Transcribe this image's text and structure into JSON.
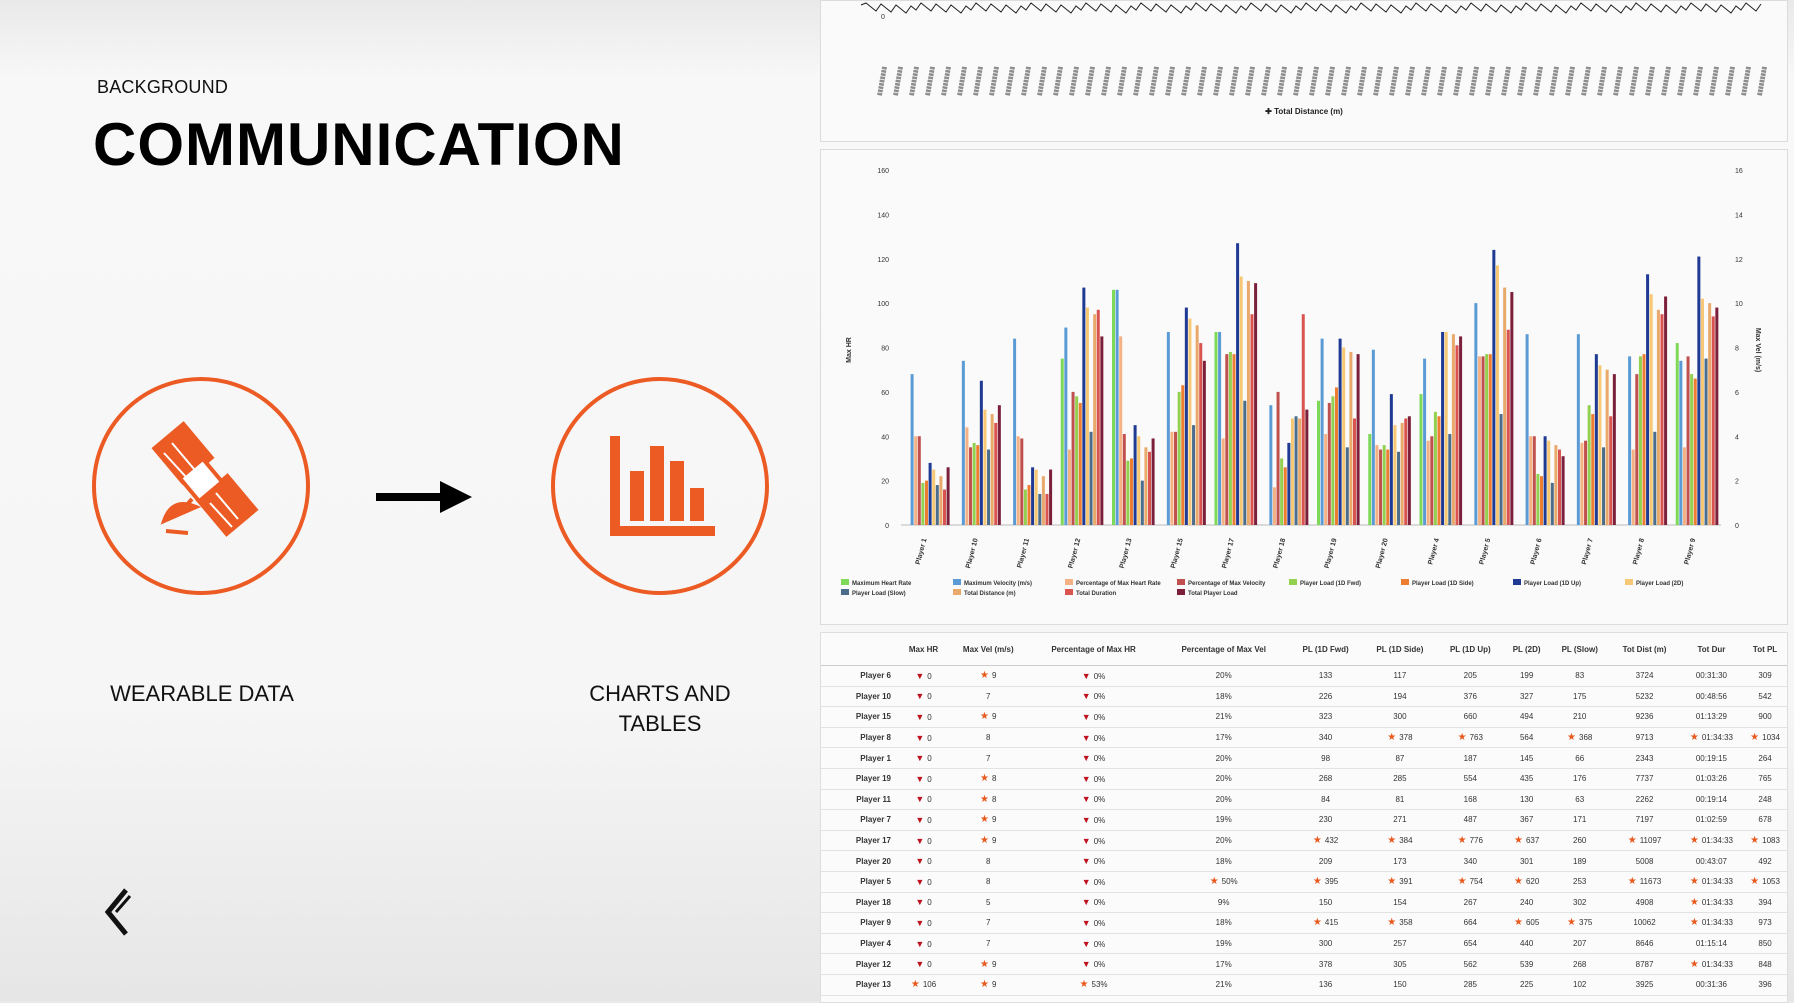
{
  "slide": {
    "kicker": "BACKGROUND",
    "title": "COMMUNICATION",
    "left_icon": "satellite-icon",
    "left_label": "WEARABLE DATA",
    "arrow_icon": "arrow-right-icon",
    "right_icon": "bar-chart-icon",
    "right_label_line1": "CHARTS AND",
    "right_label_line2": "TABLES",
    "logo_icon": "brand-logo-icon",
    "accent_color": "#ec5b24"
  },
  "top_chart": {
    "legend": "Total Distance (m)",
    "y_tick_visible": "0"
  },
  "chart_data": {
    "type": "bar",
    "ylabel": "Max HR",
    "y2label": "Max Vel (m/s)",
    "ylim": [
      0,
      160
    ],
    "y2lim": [
      0,
      16
    ],
    "y_ticks": [
      "0",
      "20",
      "40",
      "60",
      "80",
      "100",
      "120",
      "140",
      "160"
    ],
    "y2_ticks": [
      "0",
      "2",
      "4",
      "6",
      "8",
      "10",
      "12",
      "14",
      "16"
    ],
    "categories": [
      "Player 1",
      "Player 10",
      "Player 11",
      "Player 12",
      "Player 13",
      "Player 15",
      "Player 17",
      "Player 18",
      "Player 19",
      "Player 20",
      "Player 4",
      "Player 5",
      "Player 6",
      "Player 7",
      "Player 8",
      "Player 9"
    ],
    "legend": [
      "Maximum Heart Rate",
      "Maximum Velocity (m/s)",
      "Percentage of Max Heart Rate",
      "Percentage of Max Velocity",
      "Player Load (1D Fwd)",
      "Player Load (1D Side)",
      "Player Load (1D Up)",
      "Player Load (2D)",
      "Player Load (Slow)",
      "Total Distance (m)",
      "Total Duration",
      "Total Player Load"
    ],
    "colors": [
      "#7ed957",
      "#5b9bd5",
      "#f4b183",
      "#c0504d",
      "#92d050",
      "#ed7d31",
      "#1f3a93",
      "#f7c873",
      "#4b6c8b",
      "#e9a96b",
      "#d9534f",
      "#7b1f3a"
    ],
    "series": [
      {
        "name": "Maximum Heart Rate",
        "values": [
          0,
          0,
          0,
          75,
          106,
          0,
          87,
          0,
          56,
          41,
          59,
          0,
          0,
          0,
          0,
          82
        ]
      },
      {
        "name": "Maximum Velocity (m/s)",
        "values": [
          68,
          74,
          84,
          89,
          106,
          87,
          87,
          54,
          84,
          79,
          75,
          100,
          86,
          86,
          76,
          74
        ]
      },
      {
        "name": "Percentage of Max Heart Rate",
        "values": [
          40,
          44,
          40,
          34,
          85,
          42,
          39,
          17,
          41,
          36,
          38,
          76,
          40,
          37,
          34,
          35
        ]
      },
      {
        "name": "Percentage of Max Velocity",
        "values": [
          40,
          35,
          39,
          60,
          41,
          42,
          77,
          60,
          55,
          34,
          40,
          76,
          40,
          38,
          68,
          76
        ]
      },
      {
        "name": "Player Load (1D Fwd)",
        "values": [
          19,
          37,
          16,
          58,
          29,
          60,
          78,
          30,
          58,
          36,
          51,
          77,
          23,
          54,
          76,
          68
        ]
      },
      {
        "name": "Player Load (1D Side)",
        "values": [
          20,
          36,
          18,
          55,
          30,
          63,
          77,
          26,
          62,
          34,
          49,
          77,
          22,
          50,
          77,
          66
        ]
      },
      {
        "name": "Player Load (1D Up)",
        "values": [
          28,
          65,
          26,
          107,
          45,
          98,
          127,
          37,
          84,
          59,
          87,
          124,
          40,
          77,
          113,
          121
        ]
      },
      {
        "name": "Player Load (2D)",
        "values": [
          25,
          52,
          25,
          98,
          40,
          93,
          112,
          48,
          80,
          45,
          87,
          117,
          38,
          72,
          104,
          102
        ]
      },
      {
        "name": "Player Load (Slow)",
        "values": [
          18,
          34,
          14,
          42,
          20,
          45,
          56,
          49,
          35,
          33,
          41,
          50,
          19,
          35,
          42,
          75
        ]
      },
      {
        "name": "Total Distance (m)",
        "values": [
          22,
          50,
          22,
          95,
          35,
          90,
          110,
          48,
          78,
          46,
          86,
          107,
          36,
          70,
          97,
          100
        ]
      },
      {
        "name": "Total Duration",
        "values": [
          16,
          46,
          14,
          97,
          33,
          82,
          95,
          95,
          48,
          48,
          81,
          88,
          34,
          49,
          95,
          94
        ]
      },
      {
        "name": "Total Player Load",
        "values": [
          26,
          54,
          25,
          85,
          39,
          74,
          109,
          52,
          77,
          49,
          85,
          105,
          31,
          68,
          103,
          98
        ]
      }
    ]
  },
  "table": {
    "headers": [
      "",
      "Max HR",
      "Max Vel (m/s)",
      "Percentage of Max HR",
      "Percentage of Max Vel",
      "PL (1D Fwd)",
      "PL (1D Side)",
      "PL (1D Up)",
      "PL (2D)",
      "PL (Slow)",
      "Tot Dist (m)",
      "Tot Dur",
      "Tot PL"
    ],
    "rows": [
      {
        "cells": [
          "Player 6",
          "0",
          "9",
          "0%",
          "20%",
          "133",
          "117",
          "205",
          "199",
          "83",
          "3724",
          "00:31:30",
          "309"
        ],
        "marks": [
          "",
          "tri",
          "star",
          "tri",
          "",
          "",
          "",
          "",
          "",
          "",
          "",
          "",
          ""
        ]
      },
      {
        "cells": [
          "Player 10",
          "0",
          "7",
          "0%",
          "18%",
          "226",
          "194",
          "376",
          "327",
          "175",
          "5232",
          "00:48:56",
          "542"
        ],
        "marks": [
          "",
          "tri",
          "",
          "tri",
          "",
          "",
          "",
          "",
          "",
          "",
          "",
          "",
          ""
        ]
      },
      {
        "cells": [
          "Player 15",
          "0",
          "9",
          "0%",
          "21%",
          "323",
          "300",
          "660",
          "494",
          "210",
          "9236",
          "01:13:29",
          "900"
        ],
        "marks": [
          "",
          "tri",
          "star",
          "tri",
          "",
          "",
          "",
          "",
          "",
          "",
          "",
          "",
          ""
        ]
      },
      {
        "cells": [
          "Player 8",
          "0",
          "8",
          "0%",
          "17%",
          "340",
          "378",
          "763",
          "564",
          "368",
          "9713",
          "01:34:33",
          "1034"
        ],
        "marks": [
          "",
          "tri",
          "",
          "tri",
          "",
          "",
          "star",
          "star",
          "",
          "star",
          "",
          "star",
          "star"
        ]
      },
      {
        "cells": [
          "Player 1",
          "0",
          "7",
          "0%",
          "20%",
          "98",
          "87",
          "187",
          "145",
          "66",
          "2343",
          "00:19:15",
          "264"
        ],
        "marks": [
          "",
          "tri",
          "",
          "tri",
          "",
          "",
          "",
          "",
          "",
          "",
          "",
          "",
          ""
        ]
      },
      {
        "cells": [
          "Player 19",
          "0",
          "8",
          "0%",
          "20%",
          "268",
          "285",
          "554",
          "435",
          "176",
          "7737",
          "01:03:26",
          "765"
        ],
        "marks": [
          "",
          "tri",
          "star",
          "tri",
          "",
          "",
          "",
          "",
          "",
          "",
          "",
          "",
          ""
        ]
      },
      {
        "cells": [
          "Player 11",
          "0",
          "8",
          "0%",
          "20%",
          "84",
          "81",
          "168",
          "130",
          "63",
          "2262",
          "00:19:14",
          "248"
        ],
        "marks": [
          "",
          "tri",
          "star",
          "tri",
          "",
          "",
          "",
          "",
          "",
          "",
          "",
          "",
          ""
        ]
      },
      {
        "cells": [
          "Player 7",
          "0",
          "9",
          "0%",
          "19%",
          "230",
          "271",
          "487",
          "367",
          "171",
          "7197",
          "01:02:59",
          "678"
        ],
        "marks": [
          "",
          "tri",
          "star",
          "tri",
          "",
          "",
          "",
          "",
          "",
          "",
          "",
          "",
          ""
        ]
      },
      {
        "cells": [
          "Player 17",
          "0",
          "9",
          "0%",
          "20%",
          "432",
          "384",
          "776",
          "637",
          "260",
          "11097",
          "01:34:33",
          "1083"
        ],
        "marks": [
          "",
          "tri",
          "star",
          "tri",
          "",
          "star",
          "star",
          "star",
          "star",
          "",
          "star",
          "star",
          "star"
        ]
      },
      {
        "cells": [
          "Player 20",
          "0",
          "8",
          "0%",
          "18%",
          "209",
          "173",
          "340",
          "301",
          "189",
          "5008",
          "00:43:07",
          "492"
        ],
        "marks": [
          "",
          "tri",
          "",
          "tri",
          "",
          "",
          "",
          "",
          "",
          "",
          "",
          "",
          ""
        ]
      },
      {
        "cells": [
          "Player 5",
          "0",
          "8",
          "0%",
          "50%",
          "395",
          "391",
          "754",
          "620",
          "253",
          "11673",
          "01:34:33",
          "1053"
        ],
        "marks": [
          "",
          "tri",
          "",
          "tri",
          "star",
          "star",
          "star",
          "star",
          "star",
          "",
          "star",
          "star",
          "star"
        ]
      },
      {
        "cells": [
          "Player 18",
          "0",
          "5",
          "0%",
          "9%",
          "150",
          "154",
          "267",
          "240",
          "302",
          "4908",
          "01:34:33",
          "394"
        ],
        "marks": [
          "",
          "tri",
          "",
          "tri",
          "",
          "",
          "",
          "",
          "",
          "",
          "",
          "star",
          ""
        ]
      },
      {
        "cells": [
          "Player 9",
          "0",
          "7",
          "0%",
          "18%",
          "415",
          "358",
          "664",
          "605",
          "375",
          "10062",
          "01:34:33",
          "973"
        ],
        "marks": [
          "",
          "tri",
          "",
          "tri",
          "",
          "star",
          "star",
          "",
          "star",
          "star",
          "",
          "star",
          ""
        ]
      },
      {
        "cells": [
          "Player 4",
          "0",
          "7",
          "0%",
          "19%",
          "300",
          "257",
          "654",
          "440",
          "207",
          "8646",
          "01:15:14",
          "850"
        ],
        "marks": [
          "",
          "tri",
          "",
          "tri",
          "",
          "",
          "",
          "",
          "",
          "",
          "",
          "",
          ""
        ]
      },
      {
        "cells": [
          "Player 12",
          "0",
          "9",
          "0%",
          "17%",
          "378",
          "305",
          "562",
          "539",
          "268",
          "8787",
          "01:34:33",
          "848"
        ],
        "marks": [
          "",
          "tri",
          "star",
          "tri",
          "",
          "",
          "",
          "",
          "",
          "",
          "",
          "star",
          ""
        ]
      },
      {
        "cells": [
          "Player 13",
          "106",
          "9",
          "53%",
          "21%",
          "136",
          "150",
          "285",
          "225",
          "102",
          "3925",
          "00:31:36",
          "396"
        ],
        "marks": [
          "",
          "star",
          "star",
          "star",
          "",
          "",
          "",
          "",
          "",
          "",
          "",
          "",
          ""
        ]
      }
    ]
  }
}
